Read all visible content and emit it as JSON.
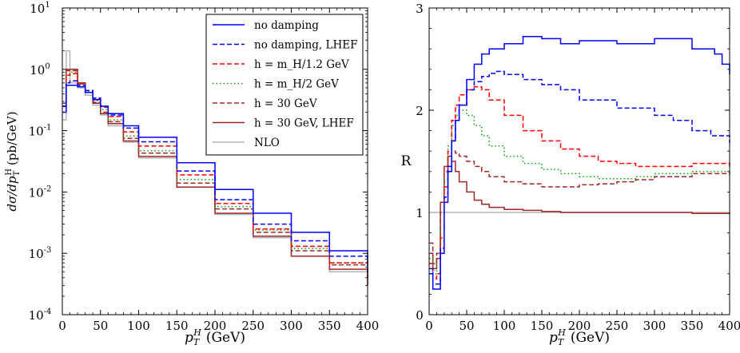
{
  "chart_data": [
    {
      "type": "line",
      "xlabel": "p_T^H (GeV)",
      "ylabel": "dσ/dp_T^H (pb/GeV)",
      "xlim": [
        0,
        400
      ],
      "ylim": [
        0.0001,
        10
      ],
      "yscale": "log",
      "xticks": [
        "0",
        "50",
        "100",
        "150",
        "200",
        "250",
        "300",
        "350",
        "400"
      ],
      "yticks": [
        {
          "base": "10",
          "exp": "1",
          "value": 10
        },
        {
          "base": "10",
          "exp": "0",
          "value": 1
        },
        {
          "base": "10",
          "exp": "-1",
          "value": 0.1
        },
        {
          "base": "10",
          "exp": "-2",
          "value": 0.01
        },
        {
          "base": "10",
          "exp": "-3",
          "value": 0.001
        },
        {
          "base": "10",
          "exp": "-4",
          "value": 0.0001
        }
      ],
      "legend": {
        "placement": "top-right",
        "entries": [
          {
            "label": "no damping",
            "color": "#0000ff",
            "dash": "solid"
          },
          {
            "label": "no damping, LHEF",
            "color": "#0000ff",
            "dash": "dashed"
          },
          {
            "label": "h = m_H/1.2 GeV",
            "color": "#ff0000",
            "dash": "dashed"
          },
          {
            "label": "h = m_H/2 GeV",
            "color": "#00a000",
            "dash": "dotted"
          },
          {
            "label": "h = 30 GeV",
            "color": "#a02828",
            "dash": "dashed"
          },
          {
            "label": "h = 30 GeV, LHEF",
            "color": "#a02828",
            "dash": "solid"
          },
          {
            "label": "NLO",
            "color": "#b4b4b4",
            "dash": "solid"
          }
        ]
      },
      "series": [
        {
          "name": "no damping",
          "x": [
            0,
            5,
            10,
            20,
            30,
            40,
            50,
            60,
            80,
            100,
            150,
            200,
            250,
            300,
            350,
            400
          ],
          "y": [
            0.2,
            0.55,
            0.55,
            0.52,
            0.42,
            0.32,
            0.25,
            0.19,
            0.12,
            0.078,
            0.03,
            0.011,
            0.0045,
            0.0022,
            0.0011,
            0.0007
          ]
        },
        {
          "name": "no damping, LHEF",
          "x": [
            0,
            5,
            10,
            20,
            30,
            40,
            50,
            60,
            80,
            100,
            150,
            200,
            250,
            300,
            350,
            400
          ],
          "y": [
            0.25,
            0.6,
            0.65,
            0.55,
            0.45,
            0.34,
            0.25,
            0.18,
            0.11,
            0.066,
            0.022,
            0.0075,
            0.003,
            0.0016,
            0.0009,
            0.0005
          ]
        },
        {
          "name": "h = m_H/1.2 GeV",
          "x": [
            0,
            5,
            10,
            20,
            30,
            40,
            50,
            60,
            80,
            100,
            150,
            200,
            250,
            300,
            350,
            400
          ],
          "y": [
            0.25,
            0.8,
            0.85,
            0.58,
            0.45,
            0.33,
            0.24,
            0.17,
            0.095,
            0.056,
            0.019,
            0.0065,
            0.0025,
            0.0013,
            0.0007,
            0.0004
          ]
        },
        {
          "name": "h = m_H/2 GeV",
          "x": [
            0,
            5,
            10,
            20,
            30,
            40,
            50,
            60,
            80,
            100,
            150,
            200,
            250,
            300,
            350,
            400
          ],
          "y": [
            0.25,
            0.85,
            0.9,
            0.58,
            0.44,
            0.31,
            0.22,
            0.15,
            0.082,
            0.047,
            0.016,
            0.0058,
            0.0024,
            0.0012,
            0.0007,
            0.0004
          ]
        },
        {
          "name": "h = 30 GeV",
          "x": [
            0,
            5,
            10,
            20,
            30,
            40,
            50,
            60,
            80,
            100,
            150,
            200,
            250,
            300,
            350,
            400
          ],
          "y": [
            0.28,
            0.95,
            0.95,
            0.58,
            0.42,
            0.29,
            0.2,
            0.14,
            0.075,
            0.043,
            0.014,
            0.0053,
            0.0022,
            0.0011,
            0.00065,
            0.00037
          ]
        },
        {
          "name": "h = 30 GeV, LHEF",
          "x": [
            0,
            5,
            10,
            20,
            30,
            40,
            50,
            60,
            80,
            100,
            150,
            200,
            250,
            300,
            350,
            400
          ],
          "y": [
            0.25,
            1.0,
            1.0,
            0.6,
            0.42,
            0.28,
            0.19,
            0.13,
            0.068,
            0.038,
            0.012,
            0.0045,
            0.0019,
            0.0009,
            0.00055,
            0.0003
          ]
        },
        {
          "name": "NLO",
          "x": [
            0,
            5,
            10,
            20,
            30,
            40,
            50,
            60,
            80,
            100,
            150,
            200,
            250,
            300,
            350,
            400
          ],
          "y": [
            0.15,
            2.0,
            0.6,
            0.5,
            0.38,
            0.26,
            0.18,
            0.12,
            0.065,
            0.036,
            0.012,
            0.0043,
            0.0018,
            0.0009,
            0.0005,
            0.0003
          ]
        }
      ]
    },
    {
      "type": "line",
      "xlabel": "p_T^H (GeV)",
      "ylabel": "R",
      "xlim": [
        0,
        400
      ],
      "ylim": [
        0,
        3
      ],
      "xticks": [
        "0",
        "50",
        "100",
        "150",
        "200",
        "250",
        "300",
        "350",
        "400"
      ],
      "yticks": [
        "0",
        "1",
        "2",
        "3"
      ],
      "series": [
        {
          "name": "no damping",
          "x": [
            0,
            5,
            10,
            15,
            20,
            25,
            30,
            35,
            40,
            50,
            60,
            70,
            80,
            100,
            125,
            150,
            175,
            200,
            250,
            300,
            350,
            380,
            390,
            400
          ],
          "y": [
            0.4,
            0.25,
            0.25,
            0.6,
            1.1,
            1.4,
            1.7,
            1.9,
            2.05,
            2.3,
            2.45,
            2.55,
            2.6,
            2.65,
            2.72,
            2.7,
            2.65,
            2.68,
            2.65,
            2.7,
            2.6,
            2.55,
            2.45,
            2.35
          ]
        },
        {
          "name": "no damping, LHEF",
          "x": [
            0,
            5,
            10,
            15,
            20,
            25,
            30,
            35,
            40,
            50,
            60,
            70,
            80,
            90,
            100,
            125,
            150,
            175,
            200,
            250,
            300,
            325,
            350,
            375,
            400
          ],
          "y": [
            0.45,
            0.3,
            0.3,
            0.65,
            1.15,
            1.45,
            1.7,
            1.9,
            2.05,
            2.2,
            2.28,
            2.33,
            2.36,
            2.38,
            2.35,
            2.3,
            2.25,
            2.2,
            2.1,
            2.02,
            1.95,
            1.9,
            1.8,
            1.75,
            1.68
          ]
        },
        {
          "name": "h = m_H/1.2 GeV",
          "x": [
            0,
            5,
            10,
            15,
            20,
            25,
            30,
            35,
            40,
            50,
            60,
            70,
            80,
            100,
            125,
            150,
            175,
            200,
            225,
            250,
            275,
            300,
            350,
            400
          ],
          "y": [
            0.5,
            0.35,
            0.4,
            0.75,
            1.25,
            1.6,
            1.9,
            2.05,
            2.15,
            2.2,
            2.23,
            2.2,
            2.1,
            1.95,
            1.8,
            1.7,
            1.62,
            1.55,
            1.5,
            1.48,
            1.45,
            1.45,
            1.48,
            1.45
          ]
        },
        {
          "name": "h = m_H/2 GeV",
          "x": [
            0,
            5,
            10,
            15,
            20,
            25,
            30,
            35,
            40,
            50,
            60,
            70,
            80,
            100,
            125,
            150,
            175,
            200,
            225,
            250,
            275,
            300,
            350,
            400
          ],
          "y": [
            0.55,
            0.4,
            0.5,
            0.85,
            1.3,
            1.65,
            1.85,
            1.95,
            2.0,
            1.95,
            1.85,
            1.75,
            1.65,
            1.55,
            1.48,
            1.42,
            1.38,
            1.35,
            1.33,
            1.33,
            1.35,
            1.38,
            1.4,
            1.38
          ]
        },
        {
          "name": "h = 30 GeV",
          "x": [
            0,
            5,
            10,
            15,
            20,
            25,
            30,
            35,
            40,
            50,
            60,
            70,
            80,
            100,
            125,
            150,
            175,
            200,
            225,
            250,
            275,
            300,
            350,
            400
          ],
          "y": [
            0.7,
            0.5,
            0.6,
            1.0,
            1.4,
            1.55,
            1.6,
            1.58,
            1.55,
            1.5,
            1.45,
            1.4,
            1.35,
            1.3,
            1.28,
            1.25,
            1.25,
            1.27,
            1.28,
            1.3,
            1.32,
            1.35,
            1.38,
            1.4
          ]
        },
        {
          "name": "h = 30 GeV, LHEF",
          "x": [
            0,
            5,
            10,
            15,
            20,
            25,
            30,
            35,
            40,
            50,
            60,
            70,
            80,
            100,
            125,
            150,
            175,
            200,
            250,
            300,
            350,
            400
          ],
          "y": [
            0.6,
            0.45,
            0.55,
            1.1,
            1.45,
            1.55,
            1.5,
            1.4,
            1.3,
            1.2,
            1.12,
            1.08,
            1.05,
            1.03,
            1.02,
            1.01,
            1.0,
            1.0,
            1.0,
            1.0,
            0.99,
            1.0
          ]
        },
        {
          "name": "NLO",
          "x": [
            0,
            400
          ],
          "y": [
            1.0,
            1.0
          ]
        }
      ]
    }
  ]
}
